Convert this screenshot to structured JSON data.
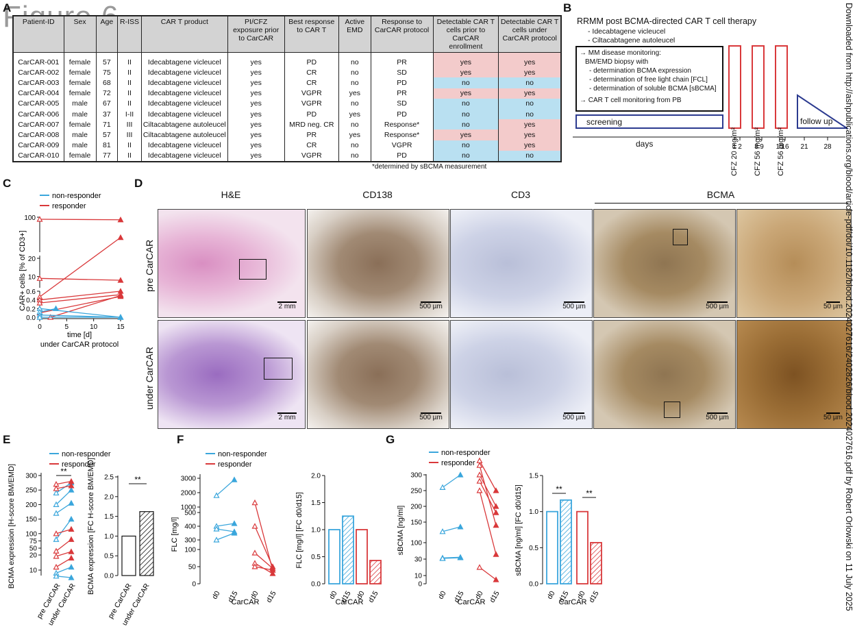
{
  "watermark": "Figure 6",
  "download_note": "Downloaded from http://ashpublications.org/blood/article-pdf/doi/10.1182/blood.2024027616/2402826/blood.2024027616.pdf by Robert Orlowski on 11 July 2025",
  "panels": {
    "A": "A",
    "B": "B",
    "C": "C",
    "D": "D",
    "E": "E",
    "F": "F",
    "G": "G"
  },
  "table": {
    "headers": [
      "Patient-ID",
      "Sex",
      "Age",
      "R-ISS",
      "CAR T product",
      "PI/CFZ exposure prior to CarCAR",
      "Best response to CAR T",
      "Active EMD",
      "Response to CarCAR protocol",
      "Detectable CAR T cells prior to CarCAR enrollment",
      "Detectable CAR T cells under CarCAR protocol"
    ],
    "rows": [
      {
        "id": "CarCAR-001",
        "sex": "female",
        "age": "57",
        "riss": "II",
        "product": "Idecabtagene vicleucel",
        "pi": "yes",
        "best": "PD",
        "emd": "no",
        "resp": "PR",
        "prior": "yes",
        "under": "yes"
      },
      {
        "id": "CarCAR-002",
        "sex": "female",
        "age": "75",
        "riss": "II",
        "product": "Idecabtagene vicleucel",
        "pi": "yes",
        "best": "CR",
        "emd": "no",
        "resp": "SD",
        "prior": "yes",
        "under": "yes"
      },
      {
        "id": "CarCAR-003",
        "sex": "female",
        "age": "68",
        "riss": "II",
        "product": "Idecabtagene vicleucel",
        "pi": "yes",
        "best": "CR",
        "emd": "no",
        "resp": "PD",
        "prior": "no",
        "under": "no"
      },
      {
        "id": "CarCAR-004",
        "sex": "female",
        "age": "72",
        "riss": "II",
        "product": "Idecabtagene vicleucel",
        "pi": "yes",
        "best": "VGPR",
        "emd": "yes",
        "resp": "PR",
        "prior": "yes",
        "under": "yes"
      },
      {
        "id": "CarCAR-005",
        "sex": "male",
        "age": "67",
        "riss": "II",
        "product": "Idecabtagene vicleucel",
        "pi": "yes",
        "best": "VGPR",
        "emd": "no",
        "resp": "SD",
        "prior": "no",
        "under": "no"
      },
      {
        "id": "CarCAR-006",
        "sex": "male",
        "age": "37",
        "riss": "I-II",
        "product": "Idecabtagene vicleucel",
        "pi": "yes",
        "best": "PD",
        "emd": "yes",
        "resp": "PD",
        "prior": "no",
        "under": "no"
      },
      {
        "id": "CarCAR-007",
        "sex": "female",
        "age": "71",
        "riss": "III",
        "product": "Ciltacabtagene autoleucel",
        "pi": "yes",
        "best": "MRD neg. CR",
        "emd": "no",
        "resp": "Response*",
        "prior": "no",
        "under": "yes"
      },
      {
        "id": "CarCAR-008",
        "sex": "male",
        "age": "57",
        "riss": "III",
        "product": "Ciltacabtagene autoleucel",
        "pi": "yes",
        "best": "PR",
        "emd": "yes",
        "resp": "Response*",
        "prior": "yes",
        "under": "yes"
      },
      {
        "id": "CarCAR-009",
        "sex": "male",
        "age": "81",
        "riss": "II",
        "product": "Idecabtagene vicleucel",
        "pi": "yes",
        "best": "CR",
        "emd": "no",
        "resp": "VGPR",
        "prior": "no",
        "under": "yes"
      },
      {
        "id": "CarCAR-010",
        "sex": "female",
        "age": "77",
        "riss": "II",
        "product": "Idecabtagene vicleucel",
        "pi": "yes",
        "best": "VGPR",
        "emd": "no",
        "resp": "PD",
        "prior": "no",
        "under": "no"
      }
    ],
    "footnote": "*determined by sBCMA measurement"
  },
  "timeline": {
    "title": "RRMM post BCMA-directed CAR T cell therapy",
    "products": [
      "- Idecabtagene vicleucel",
      "- Ciltacabtagene autoleucel"
    ],
    "box_lines": [
      "→ MM disease monitoring:",
      "BM/EMD biopsy with",
      "- determination BCMA expression",
      "- determination of free light chain [FCL]",
      "- determination of soluble BCMA [sBCMA]",
      "→ CAR T cell monitoring from PB"
    ],
    "screening": "screening",
    "cfz1": "CFZ 20 mg/m²",
    "cfz2": "CFZ 56 mg/m²",
    "cfz3": "CFZ 56 mg/m²",
    "followup": "follow up",
    "days_label": "days",
    "day_ticks": [
      "1",
      "2",
      "8",
      "9",
      "15",
      "16",
      "21",
      "28"
    ]
  },
  "colors": {
    "blue": "#3aa6dc",
    "red": "#d9383a",
    "pink": "#f3cbcb",
    "lightblue": "#b9e0f1"
  },
  "legend": {
    "non_responder": "non-responder",
    "responder": "responder"
  },
  "chart_data": [
    {
      "type": "line",
      "panel": "C",
      "ylabel": "CAR+ cells [% of CD3+]",
      "xlabel": "time [d]",
      "subtitle": "under CarCAR protocol",
      "x_ticks": [
        "0",
        "5",
        "10",
        "15"
      ],
      "y_ticks": [
        "0.0",
        "0.2",
        "0.4",
        "0.6",
        "10",
        "20",
        "100"
      ],
      "series": [
        {
          "name": "responder",
          "lines": [
            [
              0,
              92,
              15,
              90
            ],
            [
              0,
              9,
              15,
              8
            ],
            [
              0,
              0.47,
              15,
              21
            ],
            [
              0,
              0.4,
              15,
              0.6
            ],
            [
              0,
              0.33,
              15,
              0.52
            ],
            [
              0,
              0.1,
              15,
              0.48
            ],
            [
              2,
              0.0,
              15,
              0.5
            ]
          ]
        },
        {
          "name": "non-responder",
          "lines": [
            [
              0,
              0.2,
              15,
              0.0
            ],
            [
              0,
              0.12,
              3,
              0.2
            ],
            [
              0,
              0.05,
              15,
              0.0
            ],
            [
              0,
              0.0,
              15,
              0.0
            ]
          ]
        }
      ]
    },
    {
      "type": "line",
      "panel": "E-left",
      "ylabel": "BCMA expression [H-score BM/EMD]",
      "categories": [
        "pre CarCAR",
        "under CarCAR"
      ],
      "y_ticks": [
        "10",
        "20",
        "50",
        "75",
        "100",
        "150",
        "200",
        "250",
        "300"
      ],
      "significance": "**",
      "series": [
        {
          "name": "non-responder",
          "pairs": [
            [
              240,
              275
            ],
            [
              200,
              250
            ],
            [
              170,
              205
            ],
            [
              80,
              150
            ],
            [
              8,
              12
            ],
            [
              6,
              5
            ]
          ]
        },
        {
          "name": "responder",
          "pairs": [
            [
              270,
              280
            ],
            [
              255,
              265
            ],
            [
              100,
              115
            ],
            [
              40,
              80
            ],
            [
              22,
              38
            ],
            [
              12,
              18
            ]
          ]
        }
      ]
    },
    {
      "type": "bar",
      "panel": "E-right",
      "ylabel": "BCMA expression [FC H-score BM/EMD]",
      "categories": [
        "pre CarCAR",
        "under CarCAR"
      ],
      "values": [
        1.0,
        1.62
      ],
      "ylim": [
        0,
        2.5
      ],
      "y_ticks": [
        "0.0",
        "0.5",
        "1.0",
        "1.5",
        "2.0",
        "2.5"
      ],
      "significance": "**"
    },
    {
      "type": "line",
      "panel": "F-left",
      "ylabel": "FLC [mg/l]",
      "xlabel": "CarCAR",
      "categories": [
        "d0",
        "d15",
        "d0",
        "d15"
      ],
      "y_ticks": [
        "0",
        "50",
        "100",
        "300",
        "400",
        "500",
        "1000",
        "2000",
        "3000"
      ],
      "series": [
        {
          "name": "non-responder",
          "pairs": [
            [
              1800,
              2900
            ],
            [
              400,
              420
            ],
            [
              380,
              360
            ],
            [
              300,
              350
            ]
          ]
        },
        {
          "name": "responder",
          "pairs": [
            [
              1300,
              40
            ],
            [
              400,
              50
            ],
            [
              90,
              45
            ],
            [
              60,
              30
            ],
            [
              50,
              40
            ]
          ]
        }
      ]
    },
    {
      "type": "bar",
      "panel": "F-right",
      "ylabel": "FLC [mg/l] [FC d0/d15]",
      "xlabel": "CarCAR",
      "categories": [
        "d0",
        "d15",
        "d0",
        "d15"
      ],
      "values": [
        1.0,
        1.25,
        1.0,
        0.43
      ],
      "ylim": [
        0,
        2.0
      ],
      "y_ticks": [
        "0.0",
        "0.5",
        "1.0",
        "1.5",
        "2.0"
      ]
    },
    {
      "type": "line",
      "panel": "G-left",
      "ylabel": "sBCMA [ng/ml]",
      "xlabel": "CarCAR",
      "categories": [
        "d0",
        "d15",
        "d0",
        "d15"
      ],
      "y_ticks": [
        "0",
        "10",
        "30",
        "100",
        "150",
        "200",
        "250",
        "300"
      ],
      "series": [
        {
          "name": "non-responder",
          "pairs": [
            [
              260,
              300
            ],
            [
              120,
              135
            ],
            [
              35,
              38
            ],
            [
              33,
              36
            ]
          ]
        },
        {
          "name": "responder",
          "pairs": [
            [
              345,
              250
            ],
            [
              330,
              140
            ],
            [
              300,
              200
            ],
            [
              280,
              180
            ],
            [
              250,
              50
            ],
            [
              20,
              5
            ]
          ]
        }
      ]
    },
    {
      "type": "bar",
      "panel": "G-right",
      "ylabel": "sBCMA [ng/ml] [FC d0/d15]",
      "xlabel": "CarCAR",
      "categories": [
        "d0",
        "d15",
        "d0",
        "d15"
      ],
      "values": [
        1.0,
        1.16,
        1.0,
        0.57
      ],
      "ylim": [
        0,
        1.5
      ],
      "y_ticks": [
        "0.0",
        "0.5",
        "1.0",
        "1.5"
      ],
      "significance": [
        "**",
        "**"
      ]
    }
  ],
  "histology": {
    "col_heads": [
      "H&E",
      "CD138",
      "CD3",
      "BCMA"
    ],
    "row_heads": [
      "pre CarCAR",
      "under CarCAR"
    ],
    "scale_2mm": "2 mm",
    "scale_500": "500 µm",
    "scale_50": "50 µm"
  }
}
